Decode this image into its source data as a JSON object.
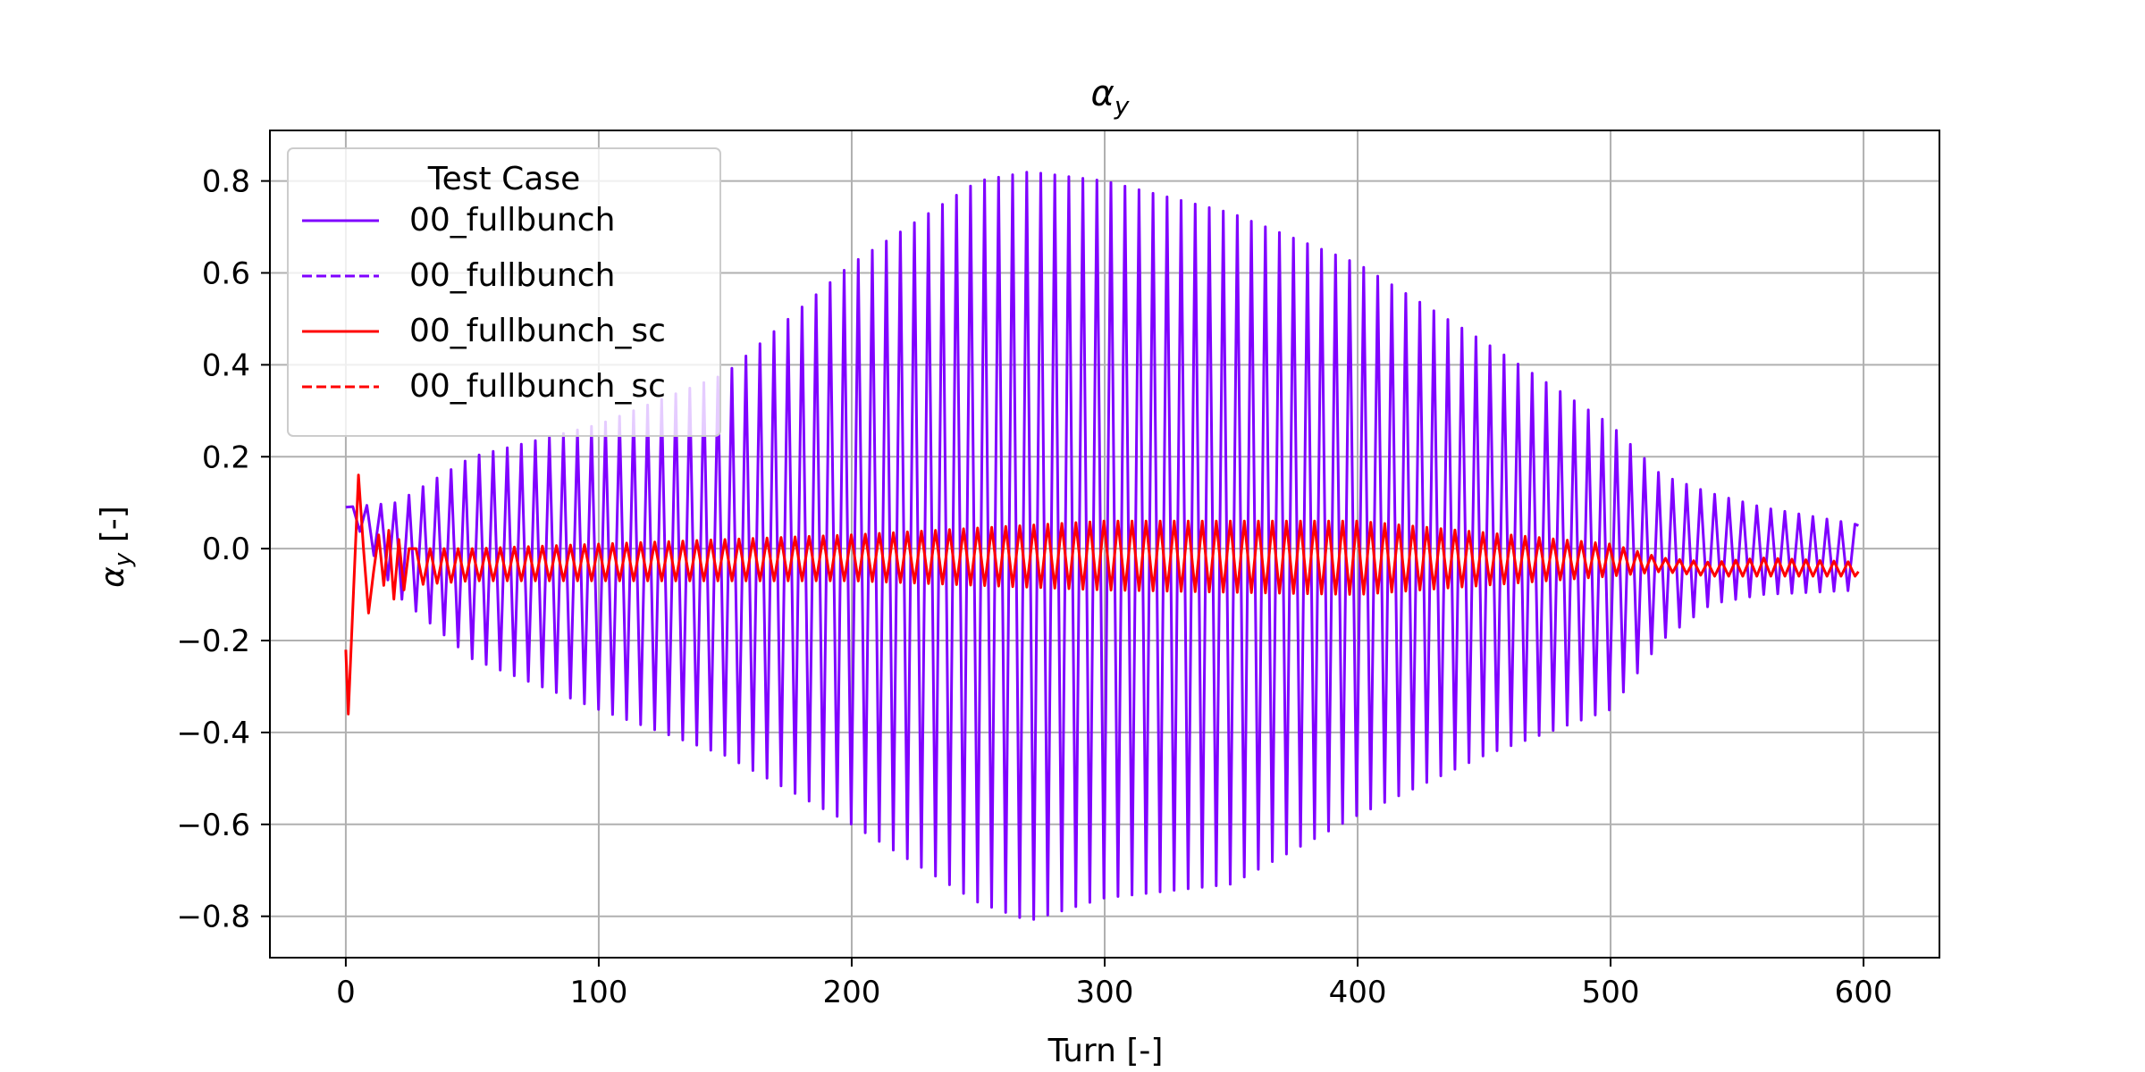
{
  "chart_data": {
    "type": "line",
    "title": "α_y",
    "title_main": "α",
    "title_sub": "y",
    "xlabel": "Turn [-]",
    "ylabel": "α_y [-]",
    "ylabel_main": "α",
    "ylabel_sub": "y",
    "ylabel_rest": " [-]",
    "xlim": [
      -30,
      630
    ],
    "ylim": [
      -0.89,
      0.91
    ],
    "xticks": [
      0,
      100,
      200,
      300,
      400,
      500,
      600
    ],
    "xtick_labels": [
      "0",
      "100",
      "200",
      "300",
      "400",
      "500",
      "600"
    ],
    "yticks": [
      -0.8,
      -0.6,
      -0.4,
      -0.2,
      0.0,
      0.2,
      0.4,
      0.6,
      0.8
    ],
    "ytick_labels": [
      "−0.8",
      "−0.6",
      "−0.4",
      "−0.2",
      "0.0",
      "0.2",
      "0.4",
      "0.6",
      "0.8"
    ],
    "grid": true,
    "legend": {
      "title": "Test Case",
      "placement": "top-left",
      "entries": [
        {
          "label": "00_fullbunch",
          "color": "#7f00ff",
          "dash": "solid"
        },
        {
          "label": "00_fullbunch",
          "color": "#7f00ff",
          "dash": "dashed"
        },
        {
          "label": "00_fullbunch_sc",
          "color": "#ff0000",
          "dash": "solid"
        },
        {
          "label": "00_fullbunch_sc",
          "color": "#ff0000",
          "dash": "dashed"
        }
      ]
    },
    "series": [
      {
        "name": "00_fullbunch",
        "color": "#7f00ff",
        "dash": "solid",
        "oscillation_period": 5.55,
        "start_value": 0.09,
        "envelope_x": [
          0,
          20,
          50,
          100,
          150,
          200,
          250,
          270,
          300,
          350,
          400,
          450,
          500,
          520,
          540,
          560,
          600
        ],
        "envelope_upper": [
          0.09,
          0.1,
          0.2,
          0.27,
          0.38,
          0.62,
          0.8,
          0.82,
          0.8,
          0.73,
          0.62,
          0.45,
          0.27,
          0.16,
          0.12,
          0.09,
          0.05
        ],
        "envelope_lower": [
          0.09,
          -0.1,
          -0.24,
          -0.35,
          -0.45,
          -0.6,
          -0.77,
          -0.81,
          -0.76,
          -0.73,
          -0.58,
          -0.45,
          -0.35,
          -0.2,
          -0.12,
          -0.1,
          -0.09
        ],
        "end_value": 0.05
      },
      {
        "name": "00_fullbunch_sc",
        "color": "#ff0000",
        "dash": "solid",
        "oscillation_period": 5.55,
        "initial_points": [
          [
            0,
            -0.22
          ],
          [
            1,
            -0.36
          ],
          [
            3,
            -0.1
          ],
          [
            5,
            0.16
          ],
          [
            7,
            0.0
          ],
          [
            9,
            -0.14
          ],
          [
            11,
            -0.05
          ],
          [
            13,
            0.03
          ],
          [
            15,
            -0.08
          ],
          [
            17,
            0.04
          ],
          [
            19,
            -0.11
          ],
          [
            21,
            0.02
          ],
          [
            23,
            -0.09
          ],
          [
            25,
            0.0
          ]
        ],
        "envelope_x": [
          25,
          50,
          100,
          200,
          300,
          400,
          500,
          520,
          540,
          560,
          600
        ],
        "envelope_upper": [
          0.0,
          0.0,
          0.01,
          0.03,
          0.06,
          0.06,
          0.01,
          -0.02,
          -0.03,
          -0.02,
          -0.03
        ],
        "envelope_lower": [
          -0.08,
          -0.07,
          -0.07,
          -0.07,
          -0.09,
          -0.1,
          -0.06,
          -0.05,
          -0.06,
          -0.06,
          -0.06
        ],
        "end_value": -0.05
      }
    ]
  }
}
